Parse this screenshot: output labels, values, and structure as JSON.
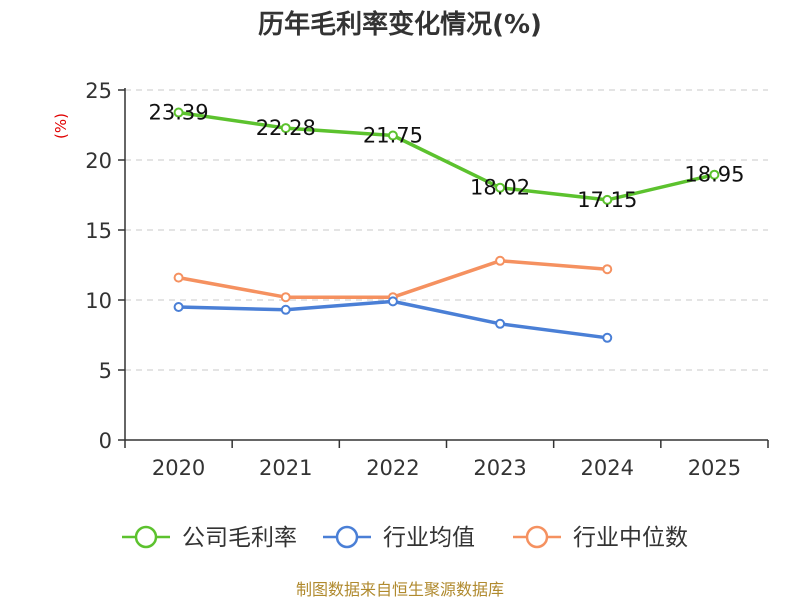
{
  "chart_data": {
    "type": "line",
    "title": "历年毛利率变化情况(%)",
    "ylabel": "(%)",
    "xlabel": "",
    "categories": [
      "2020",
      "2021",
      "2022",
      "2023",
      "2024",
      "2025"
    ],
    "ylim": [
      0,
      25
    ],
    "yticks": [
      0,
      5,
      10,
      15,
      20,
      25
    ],
    "grid": true,
    "legend_position": "bottom",
    "series": [
      {
        "name": "公司毛利率",
        "color": "#5cc22e",
        "values": [
          23.39,
          22.28,
          21.75,
          18.02,
          17.15,
          18.95
        ],
        "labels": [
          "23.39",
          "22.28",
          "21.75",
          "18.02",
          "17.15",
          "18.95"
        ],
        "show_labels": true
      },
      {
        "name": "行业均值",
        "color": "#4a7fd6",
        "values": [
          9.5,
          9.3,
          9.9,
          8.3,
          7.3,
          null
        ],
        "show_labels": false
      },
      {
        "name": "行业中位数",
        "color": "#f59160",
        "values": [
          11.6,
          10.2,
          10.2,
          12.8,
          12.2,
          null
        ],
        "show_labels": false
      }
    ]
  },
  "footer": {
    "source": "制图数据来自恒生聚源数据库"
  }
}
